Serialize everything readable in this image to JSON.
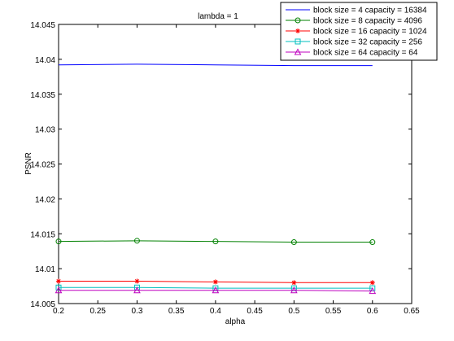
{
  "chart_data": {
    "type": "line",
    "title": "lambda = 1",
    "xlabel": "alpha",
    "ylabel": "PSNR",
    "xlim": [
      0.2,
      0.65
    ],
    "ylim": [
      14.005,
      14.045
    ],
    "xticks": [
      "0.2",
      "0.25",
      "0.3",
      "0.35",
      "0.4",
      "0.45",
      "0.5",
      "0.55",
      "0.6",
      "0.65"
    ],
    "yticks": [
      "14.005",
      "14.01",
      "14.015",
      "14.02",
      "14.025",
      "14.03",
      "14.035",
      "14.04",
      "14.045"
    ],
    "grid": false,
    "legend_position": "top-right",
    "x": [
      0.2,
      0.3,
      0.4,
      0.5,
      0.6
    ],
    "series": [
      {
        "name": "block size = 4 capacity = 16384",
        "values": [
          14.0392,
          14.0393,
          14.0392,
          14.0391,
          14.0391
        ],
        "color": "#0000ff",
        "marker": "none"
      },
      {
        "name": "block size = 8 capacity = 4096",
        "values": [
          14.0139,
          14.014,
          14.0139,
          14.0138,
          14.0138
        ],
        "color": "#008000",
        "marker": "circle"
      },
      {
        "name": "block size = 16 capacity = 1024",
        "values": [
          14.0082,
          14.0082,
          14.0081,
          14.008,
          14.008
        ],
        "color": "#ff0000",
        "marker": "star"
      },
      {
        "name": "block size = 32 capacity = 256",
        "values": [
          14.0073,
          14.0073,
          14.0072,
          14.0072,
          14.0072
        ],
        "color": "#00bfbf",
        "marker": "square"
      },
      {
        "name": "block size = 64 capacity = 64",
        "values": [
          14.0069,
          14.0069,
          14.0069,
          14.0069,
          14.0068
        ],
        "color": "#bf00bf",
        "marker": "triangle"
      }
    ]
  }
}
